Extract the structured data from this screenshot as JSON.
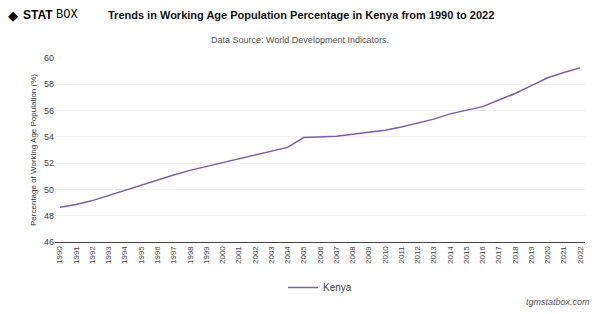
{
  "chart_data": {
    "type": "line",
    "title": "Trends in Working Age Population Percentage in Kenya from 1990 to 2022",
    "subtitle": "Data Source: World Development Indicators.",
    "ylabel": "Percentage of Working Age Population (%)",
    "annotations": [
      "◆",
      "STAT",
      "BOX",
      "tgmstatbox.com"
    ],
    "x": [
      1990,
      1991,
      1992,
      1993,
      1994,
      1995,
      1996,
      1997,
      1998,
      1999,
      2000,
      2001,
      2002,
      2003,
      2004,
      2005,
      2006,
      2007,
      2008,
      2009,
      2010,
      2011,
      2012,
      2013,
      2014,
      2015,
      2016,
      2017,
      2018,
      2019,
      2020,
      2021,
      2022
    ],
    "series": [
      {
        "name": "Kenya",
        "color": "#7b5ea7",
        "values": [
          48.65,
          48.85,
          49.15,
          49.55,
          49.95,
          50.35,
          50.75,
          51.1,
          51.45,
          51.75,
          52.05,
          52.35,
          52.6,
          52.9,
          53.2,
          53.95,
          54.0,
          54.05,
          54.2,
          54.35,
          54.5,
          54.75,
          55.05,
          55.35,
          55.75,
          56.0,
          56.3,
          56.8,
          57.3,
          57.9,
          58.5,
          58.9,
          59.25
        ]
      }
    ],
    "xlim": [
      1989.7,
      2022.3
    ],
    "xticks": [
      1990,
      1991,
      1992,
      1993,
      1994,
      1995,
      1996,
      1997,
      1998,
      1999,
      2000,
      2001,
      2002,
      2003,
      2004,
      2005,
      2006,
      2007,
      2008,
      2009,
      2010,
      2011,
      2012,
      2013,
      2014,
      2015,
      2016,
      2017,
      2018,
      2019,
      2020,
      2021,
      2022
    ],
    "ylim": [
      46,
      60
    ],
    "yticks": [
      46,
      48,
      50,
      52,
      54,
      56,
      58,
      60
    ],
    "grid": true,
    "legend": "bottom"
  }
}
